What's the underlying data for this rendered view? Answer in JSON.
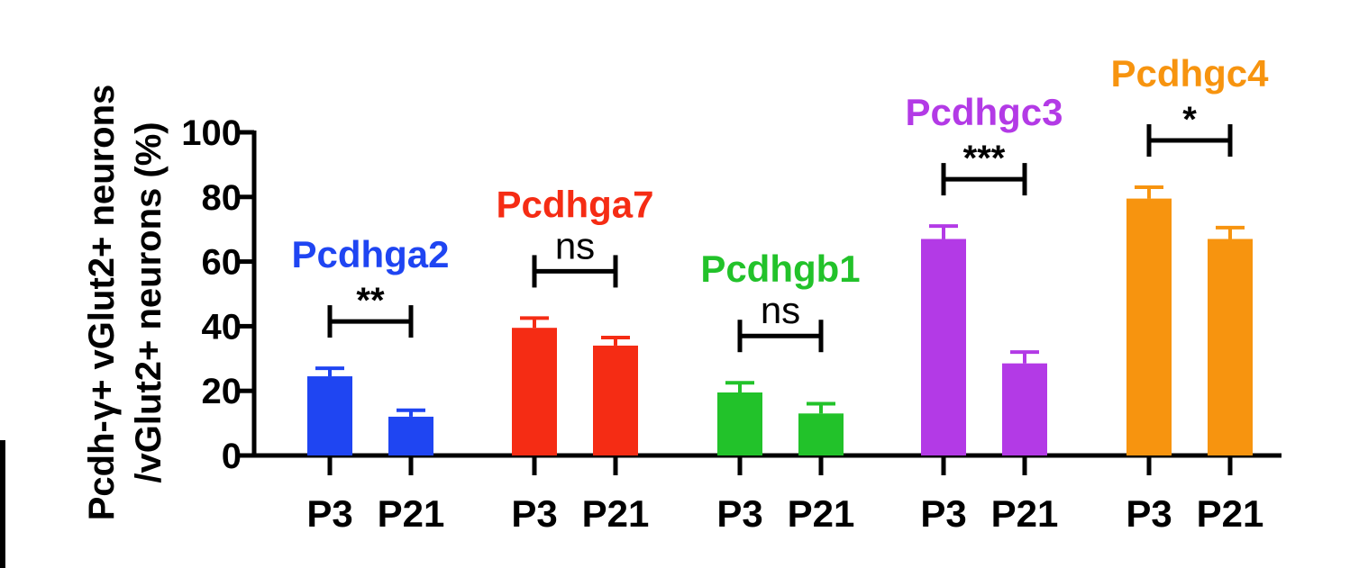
{
  "chart_data": {
    "type": "bar",
    "ylabel_line1": "Pcdh-γ+ vGlut2+ neurons",
    "ylabel_line2": "/vGlut2+ neurons (%)",
    "ylim": [
      0,
      100
    ],
    "yticks": [
      "0",
      "20",
      "40",
      "60",
      "80",
      "100"
    ],
    "ytick_values": [
      0,
      20,
      40,
      60,
      80,
      100
    ],
    "groups": [
      {
        "name": "Pcdhga2",
        "color": "#1f45f2",
        "significance": "**",
        "categories": [
          "P3",
          "P21"
        ],
        "values": [
          24.5,
          12
        ],
        "errors": [
          2.5,
          2
        ]
      },
      {
        "name": "Pcdhga7",
        "color": "#f52c14",
        "significance": "ns",
        "categories": [
          "P3",
          "P21"
        ],
        "values": [
          39.5,
          34
        ],
        "errors": [
          3,
          2.5
        ]
      },
      {
        "name": "Pcdhgb1",
        "color": "#22c22a",
        "significance": "ns",
        "categories": [
          "P3",
          "P21"
        ],
        "values": [
          19.5,
          13
        ],
        "errors": [
          3,
          3
        ]
      },
      {
        "name": "Pcdhgc3",
        "color": "#b33ae6",
        "significance": "***",
        "categories": [
          "P3",
          "P21"
        ],
        "values": [
          67,
          28.5
        ],
        "errors": [
          4,
          3.5
        ]
      },
      {
        "name": "Pcdhgc4",
        "color": "#f7940f",
        "significance": "*",
        "categories": [
          "P3",
          "P21"
        ],
        "values": [
          79.5,
          67
        ],
        "errors": [
          3.5,
          3.5
        ]
      }
    ]
  }
}
